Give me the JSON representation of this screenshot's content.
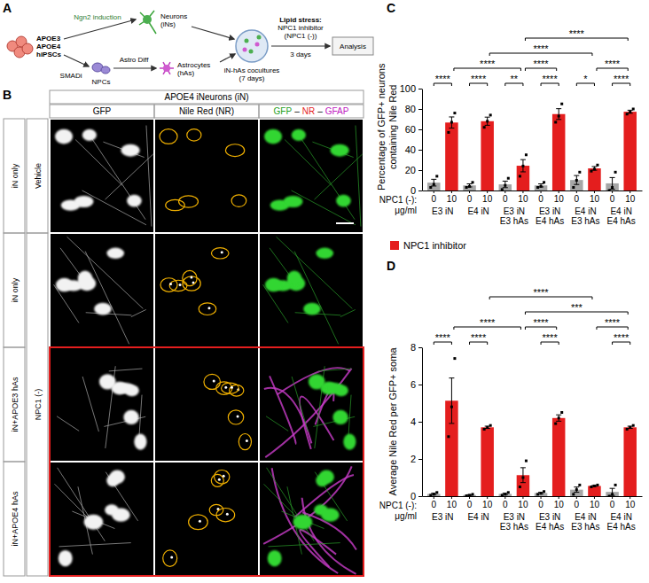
{
  "panel_a": {
    "letter": "A",
    "hipsc": [
      "APOE3",
      "APOE4",
      "hiPSCs"
    ],
    "ngn2": "Ngn2 induction",
    "neurons": [
      "Neurons",
      "(iNs)"
    ],
    "smadi": "SMADi",
    "npcs": "NPCs",
    "astro_diff": "Astro Diff",
    "astrocytes": [
      "Astrocytes",
      "(hAs)"
    ],
    "coculture": [
      "iN-hAs cocultures",
      "(7 days)"
    ],
    "lipid": [
      "Lipid stress:",
      "NPC1 inhibitor",
      "(NPC1 (-))"
    ],
    "duration": "3 days",
    "analysis": "Analysis"
  },
  "panel_b": {
    "letter": "B",
    "header": "APOE4 iNeurons (iN)",
    "columns": [
      "GFP",
      "Nile Red (NR)",
      [
        "GFP",
        "–",
        "NR",
        "–",
        "GFAP"
      ]
    ],
    "rows": [
      "iN only",
      "iN only",
      "iN+APOE3 hAs",
      "iN+APOE4 hAs"
    ],
    "conditions": [
      "Vehicle",
      "NPC1 (-)"
    ]
  },
  "chart_data": [
    {
      "type": "bar",
      "letter": "C",
      "ylabel": "Percentage of GFP+ neurons containing Nile Red",
      "xlabel": [
        "NPC1 (-):",
        "μg/ml"
      ],
      "groups": [
        "E3 iN",
        "E4 iN",
        "E3 iN E3 hAs",
        "E3 iN E4 hAs",
        "E4 iN E3 hAs",
        "E4 iN E4 hAs"
      ],
      "categories": [
        "0",
        "10",
        "0",
        "10",
        "0",
        "10",
        "0",
        "10",
        "0",
        "10",
        "0",
        "10"
      ],
      "values": [
        7.7,
        66.7,
        5,
        68,
        6,
        24.3,
        5,
        75,
        10.3,
        21.7,
        7,
        77.3
      ],
      "errors": [
        3.3,
        5.5,
        1.5,
        4.0,
        3.2,
        6.0,
        1.5,
        5.3,
        4.4,
        1.8,
        5.7,
        1.5
      ],
      "points": [
        [
          3,
          6,
          14
        ],
        [
          57,
          67,
          76
        ],
        [
          3,
          4,
          8
        ],
        [
          62,
          68,
          74
        ],
        [
          1,
          5,
          12
        ],
        [
          14,
          24,
          35
        ],
        [
          3,
          4,
          8
        ],
        [
          67,
          73,
          85
        ],
        [
          3,
          10,
          18
        ],
        [
          19,
          21,
          25
        ],
        [
          0,
          3,
          18
        ],
        [
          75,
          77,
          80
        ]
      ],
      "colors": [
        "#a6a6a6",
        "#e41e1e",
        "#a6a6a6",
        "#e41e1e",
        "#a6a6a6",
        "#e41e1e",
        "#a6a6a6",
        "#e41e1e",
        "#a6a6a6",
        "#e41e1e",
        "#a6a6a6",
        "#e41e1e"
      ],
      "ylim": [
        0,
        100
      ],
      "yticks": [
        0,
        20,
        40,
        60,
        80,
        100
      ],
      "legend": "bottom",
      "legend_label": "NPC1 inhibitor",
      "significance": [
        {
          "from": 0,
          "to": 1,
          "label": "****"
        },
        {
          "from": 2,
          "to": 3,
          "label": "****"
        },
        {
          "from": 4,
          "to": 5,
          "label": "**"
        },
        {
          "from": 6,
          "to": 7,
          "label": "****"
        },
        {
          "from": 8,
          "to": 9,
          "label": "*"
        },
        {
          "from": 10,
          "to": 11,
          "label": "****"
        },
        {
          "from": 3,
          "to": 9,
          "label": "****"
        },
        {
          "from": 1,
          "to": 5,
          "label": "****"
        },
        {
          "from": 5,
          "to": 11,
          "label": "****"
        },
        {
          "from": 5,
          "to": 7,
          "label": "****"
        },
        {
          "from": 9,
          "to": 11,
          "label": "****"
        }
      ]
    },
    {
      "type": "bar",
      "letter": "D",
      "ylabel": "Average Nile Red per GFP+ soma",
      "xlabel": [
        "NPC1 (-):",
        "μg/ml"
      ],
      "groups": [
        "E3 iN",
        "E4 iN",
        "E3 iN E3 hAs",
        "E3 iN E4 hAs",
        "E4 iN E3 hAs",
        "E4 iN E4 hAs"
      ],
      "categories": [
        "0",
        "10",
        "0",
        "10",
        "0",
        "10",
        "0",
        "10",
        "0",
        "10",
        "0",
        "10"
      ],
      "values": [
        0.12,
        5.13,
        0.06,
        3.7,
        0.12,
        1.13,
        0.17,
        4.2,
        0.35,
        0.55,
        0.23,
        3.7
      ],
      "errors": [
        0.04,
        1.22,
        0.02,
        0.06,
        0.04,
        0.4,
        0.04,
        0.17,
        0.14,
        0.03,
        0.19,
        0.06
      ],
      "points": [
        [
          0.05,
          0.1,
          0.2
        ],
        [
          3.2,
          4.8,
          7.4
        ],
        [
          0.02,
          0.05,
          0.1
        ],
        [
          3.6,
          3.7,
          3.8
        ],
        [
          0.05,
          0.1,
          0.2
        ],
        [
          0.5,
          1.0,
          1.9
        ],
        [
          0.1,
          0.15,
          0.25
        ],
        [
          3.9,
          4.2,
          4.5
        ],
        [
          0.1,
          0.35,
          0.6
        ],
        [
          0.5,
          0.55,
          0.6
        ],
        [
          0.0,
          0.1,
          0.6
        ],
        [
          3.6,
          3.7,
          3.8
        ]
      ],
      "colors": [
        "#a6a6a6",
        "#e41e1e",
        "#a6a6a6",
        "#e41e1e",
        "#a6a6a6",
        "#e41e1e",
        "#a6a6a6",
        "#e41e1e",
        "#a6a6a6",
        "#e41e1e",
        "#a6a6a6",
        "#e41e1e"
      ],
      "ylim": [
        0,
        8
      ],
      "yticks": [
        0,
        2,
        4,
        6,
        8
      ],
      "significance": [
        {
          "from": 0,
          "to": 1,
          "label": "****"
        },
        {
          "from": 2,
          "to": 3,
          "label": "****"
        },
        {
          "from": 6,
          "to": 7,
          "label": "****"
        },
        {
          "from": 10,
          "to": 11,
          "label": "****"
        },
        {
          "from": 5,
          "to": 11,
          "label": "***"
        },
        {
          "from": 3,
          "to": 9,
          "label": "****"
        },
        {
          "from": 1,
          "to": 5,
          "label": "****"
        },
        {
          "from": 5,
          "to": 7,
          "label": "****"
        },
        {
          "from": 9,
          "to": 11,
          "label": "****"
        }
      ]
    }
  ]
}
